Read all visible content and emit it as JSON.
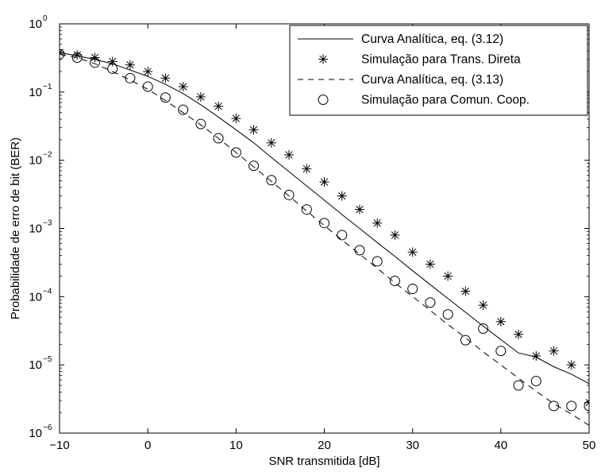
{
  "chart_data": {
    "type": "line",
    "xlabel": "SNR transmitida [dB]",
    "ylabel": "Probabilidade de erro de bit (BER)",
    "xlim": [
      -10,
      50
    ],
    "ylim": [
      1e-06,
      1
    ],
    "yscale": "log",
    "x_ticks": [
      -10,
      0,
      10,
      20,
      30,
      40,
      50
    ],
    "x_tick_labels": [
      "−10",
      "0",
      "10",
      "20",
      "30",
      "40",
      "50"
    ],
    "y_tick_exponents": [
      0,
      -1,
      -2,
      -3,
      -4,
      -5,
      -6
    ],
    "y_tick_base": "10",
    "y_tick_labels": [
      "0",
      "−1",
      "−2",
      "−3",
      "−4",
      "−5",
      "−6"
    ],
    "legend_position": "top-right",
    "series": [
      {
        "name": "Curva Analítica, eq. (3.12)",
        "style": "solid-line",
        "x": [
          -10,
          -8,
          -6,
          -4,
          -2,
          0,
          2,
          4,
          6,
          8,
          10,
          12,
          14,
          16,
          18,
          20,
          22,
          24,
          26,
          28,
          30,
          32,
          34,
          36,
          38,
          40,
          42,
          44,
          46,
          48,
          50
        ],
        "y": [
          0.38,
          0.34,
          0.3,
          0.26,
          0.21,
          0.17,
          0.13,
          0.095,
          0.065,
          0.043,
          0.028,
          0.018,
          0.011,
          0.0068,
          0.0042,
          0.0026,
          0.0016,
          0.001,
          0.00062,
          0.00039,
          0.00024,
          0.00015,
          9.4e-05,
          5.9e-05,
          3.7e-05,
          2.35e-05,
          1.5e-05,
          1.3e-05,
          9.4e-06,
          7.3e-06,
          5.3e-06
        ]
      },
      {
        "name": "Simulação para Trans. Direta",
        "style": "asterisk",
        "x": [
          -10,
          -8,
          -6,
          -4,
          -2,
          0,
          2,
          4,
          6,
          8,
          10,
          12,
          14,
          16,
          18,
          20,
          22,
          24,
          26,
          28,
          30,
          32,
          34,
          36,
          38,
          40,
          42,
          44,
          46,
          48,
          50
        ],
        "y": [
          0.38,
          0.35,
          0.32,
          0.28,
          0.25,
          0.2,
          0.16,
          0.12,
          0.085,
          0.062,
          0.041,
          0.028,
          0.018,
          0.012,
          0.0075,
          0.0048,
          0.003,
          0.0019,
          0.0012,
          0.0008,
          0.00045,
          0.0003,
          0.0002,
          0.00012,
          7.5e-05,
          4.3e-05,
          2.8e-05,
          1.35e-05,
          1.6e-05,
          1e-05,
          2.8e-06
        ]
      },
      {
        "name": "Curva Analítica, eq. (3.13)",
        "style": "dashed-line",
        "x": [
          -10,
          -8,
          -6,
          -4,
          -2,
          0,
          2,
          4,
          6,
          8,
          10,
          12,
          14,
          16,
          18,
          20,
          22,
          24,
          26,
          28,
          30,
          32,
          34,
          36,
          38,
          40,
          42,
          44,
          46,
          48,
          50
        ],
        "y": [
          0.36,
          0.32,
          0.26,
          0.2,
          0.15,
          0.11,
          0.075,
          0.05,
          0.033,
          0.021,
          0.013,
          0.008,
          0.0049,
          0.003,
          0.0018,
          0.0011,
          0.00068,
          0.00042,
          0.00026,
          0.00016,
          0.0001,
          6.3e-05,
          3.9e-05,
          2.5e-05,
          1.55e-05,
          1e-05,
          6.4e-06,
          4.1e-06,
          2.7e-06,
          1.9e-06,
          1.3e-06
        ]
      },
      {
        "name": "Simulação para Comun. Coop.",
        "style": "circle",
        "x": [
          -10,
          -8,
          -6,
          -4,
          -2,
          0,
          2,
          4,
          6,
          8,
          10,
          12,
          14,
          16,
          18,
          20,
          22,
          24,
          26,
          28,
          30,
          32,
          34,
          36,
          38,
          40,
          42,
          44,
          46,
          48,
          50
        ],
        "y": [
          0.36,
          0.32,
          0.27,
          0.22,
          0.16,
          0.12,
          0.083,
          0.055,
          0.034,
          0.021,
          0.013,
          0.0083,
          0.0051,
          0.0031,
          0.0019,
          0.0012,
          0.0008,
          0.00048,
          0.00033,
          0.00017,
          0.00013,
          8.2e-05,
          5.5e-05,
          2.3e-05,
          3.4e-05,
          1.6e-05,
          5e-06,
          5.8e-06,
          2.5e-06,
          2.5e-06,
          2.5e-06
        ]
      }
    ]
  }
}
